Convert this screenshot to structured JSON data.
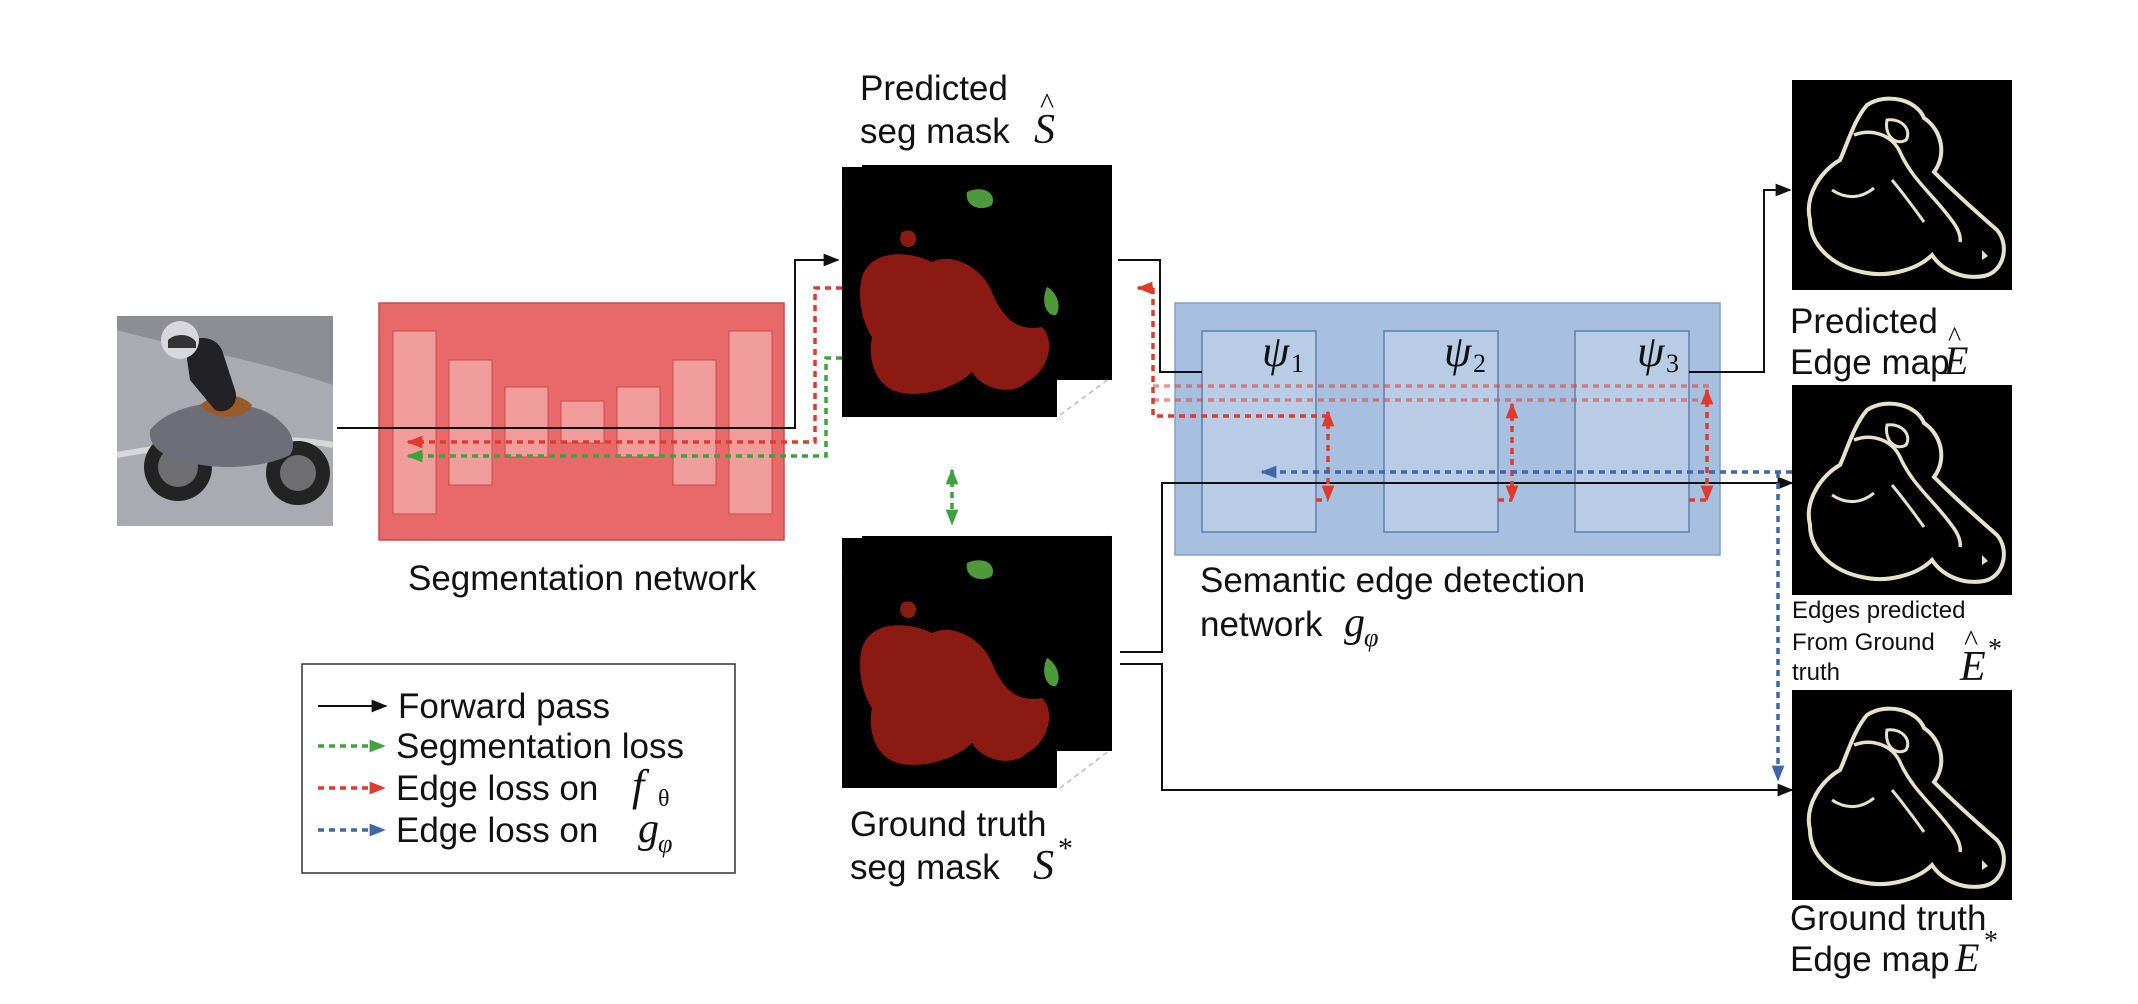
{
  "labels": {
    "predicted_seg_line1": "Predicted",
    "predicted_seg_line2": "seg mask",
    "predicted_seg_symbol": "S",
    "segmentation_network": "Segmentation network",
    "semantic_edge_line1": "Semantic edge detection",
    "semantic_edge_line2": "network",
    "semantic_edge_symbol": "g",
    "semantic_edge_subscript": "φ",
    "gt_seg_line1": "Ground truth",
    "gt_seg_line2": "seg mask",
    "gt_seg_symbol": "S",
    "gt_seg_sup": "*",
    "predicted_edge_line1": "Predicted",
    "predicted_edge_line2": "Edge map",
    "predicted_edge_symbol": "E",
    "edges_from_gt_line1": "Edges predicted",
    "edges_from_gt_line2": "From Ground",
    "edges_from_gt_line3": "truth",
    "edges_from_gt_symbol": "E",
    "edges_from_gt_sup": "*",
    "gt_edge_line1": "Ground truth",
    "gt_edge_line2": "Edge map",
    "gt_edge_symbol": "E",
    "gt_edge_sup": "*"
  },
  "edge_blocks": [
    {
      "symbol": "ψ",
      "subscript": "1"
    },
    {
      "symbol": "ψ",
      "subscript": "2"
    },
    {
      "symbol": "ψ",
      "subscript": "3"
    }
  ],
  "legend": {
    "forward": "Forward pass",
    "seg_loss": "Segmentation loss",
    "edge_f_prefix": "Edge loss on",
    "edge_f_symbol": "f",
    "edge_f_sub": "θ",
    "edge_g_prefix": "Edge loss on",
    "edge_g_symbol": "g",
    "edge_g_sub": "φ"
  },
  "colors": {
    "seg_network_fill": "#e8696a",
    "edge_network_fill": "#a8c0df",
    "forward_arrow": "#111111",
    "segmentation_loss": "#3ea33c",
    "edge_loss_f": "#e03a2f",
    "edge_loss_g": "#3d67a8",
    "mask_red": "#8b1a12",
    "mask_green": "#4e9a3a",
    "edge_contour": "#e8e2c8"
  }
}
